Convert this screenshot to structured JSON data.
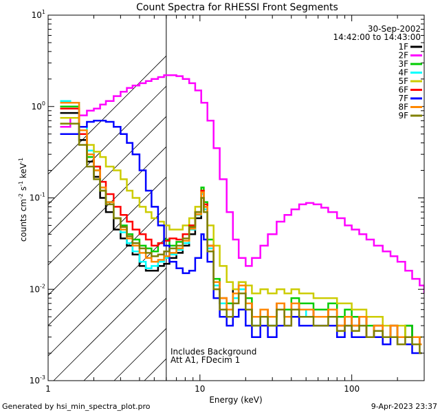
{
  "chart_data": {
    "type": "line",
    "title": "Count Spectra for RHESSI Front Segments",
    "date": "30-Sep-2002",
    "time_range": "14:42:00 to 14:43:00",
    "xlabel": "Energy (keV)",
    "ylabel_main": "counts cm",
    "ylabel_exp1": "-2",
    "ylabel_mid": " s",
    "ylabel_exp2": "-1",
    "ylabel_unit": " keV",
    "ylabel_exp3": "-1",
    "x_scale": "log",
    "y_scale": "log",
    "xlim": [
      1,
      300
    ],
    "ylim": [
      0.001,
      10
    ],
    "x_ticks": [
      {
        "value": 1,
        "label": "1"
      },
      {
        "value": 10,
        "label": "10"
      },
      {
        "value": 100,
        "label": "100"
      }
    ],
    "y_ticks": [
      {
        "value": 0.001,
        "base": "10",
        "exp": "-3"
      },
      {
        "value": 0.01,
        "base": "10",
        "exp": "-2"
      },
      {
        "value": 0.1,
        "base": "10",
        "exp": "-1"
      },
      {
        "value": 1,
        "base": "10",
        "exp": "0"
      },
      {
        "value": 10,
        "base": "10",
        "exp": "1"
      }
    ],
    "vline_energy": 6,
    "hatch_region": [
      1,
      6
    ],
    "annotations": [
      "Includes Background",
      "Att A1, FDecim 1"
    ],
    "footer_left": "Generated by hsi_min_spectra_plot.pro",
    "footer_right": "9-Apr-2023 23:37",
    "series": [
      {
        "name": "1F",
        "color": "#000000",
        "x": [
          1.2,
          1.4,
          1.6,
          1.8,
          2.0,
          2.2,
          2.4,
          2.7,
          3.0,
          3.3,
          3.6,
          4.0,
          4.4,
          4.8,
          5.3,
          5.8,
          6.3,
          7.0,
          7.7,
          8.5,
          9.3,
          10.2,
          10.6,
          11.2,
          12.3,
          13.5,
          15.0,
          16.5,
          18.0,
          20,
          22,
          25,
          28,
          32,
          36,
          40,
          45,
          50,
          56,
          63,
          70,
          80,
          90,
          100,
          112,
          125,
          140,
          160,
          180,
          200,
          225,
          250,
          280
        ],
        "y": [
          0.85,
          0.85,
          0.43,
          0.25,
          0.17,
          0.1,
          0.07,
          0.045,
          0.036,
          0.03,
          0.024,
          0.018,
          0.016,
          0.016,
          0.018,
          0.019,
          0.022,
          0.025,
          0.03,
          0.04,
          0.06,
          0.12,
          0.08,
          0.03,
          0.012,
          0.007,
          0.006,
          0.01,
          0.012,
          0.007,
          0.004,
          0.005,
          0.004,
          0.006,
          0.005,
          0.007,
          0.006,
          0.006,
          0.005,
          0.005,
          0.006,
          0.004,
          0.005,
          0.004,
          0.005,
          0.003,
          0.004,
          0.003,
          0.004,
          0.003,
          0.004,
          0.003,
          0.0025
        ]
      },
      {
        "name": "2F",
        "color": "#ff00ff",
        "x": [
          1.2,
          1.4,
          1.6,
          1.8,
          2.0,
          2.2,
          2.4,
          2.7,
          3.0,
          3.3,
          3.6,
          4.0,
          4.4,
          4.8,
          5.3,
          5.8,
          6.3,
          7.0,
          7.7,
          8.5,
          9.3,
          10.2,
          11.2,
          12.3,
          13.5,
          15.0,
          16.5,
          18.0,
          20,
          22,
          25,
          28,
          32,
          36,
          40,
          45,
          50,
          56,
          63,
          70,
          80,
          90,
          100,
          112,
          125,
          140,
          160,
          180,
          200,
          225,
          250,
          280,
          300
        ],
        "y": [
          0.6,
          0.75,
          0.8,
          0.9,
          0.95,
          1.05,
          1.15,
          1.3,
          1.45,
          1.6,
          1.7,
          1.8,
          1.9,
          2.0,
          2.1,
          2.2,
          2.2,
          2.15,
          2.0,
          1.8,
          1.5,
          1.1,
          0.7,
          0.35,
          0.16,
          0.07,
          0.035,
          0.022,
          0.018,
          0.022,
          0.03,
          0.04,
          0.055,
          0.065,
          0.075,
          0.085,
          0.088,
          0.085,
          0.078,
          0.07,
          0.06,
          0.05,
          0.045,
          0.04,
          0.035,
          0.03,
          0.026,
          0.023,
          0.02,
          0.016,
          0.013,
          0.011,
          0.009
        ]
      },
      {
        "name": "3F",
        "color": "#00cc00",
        "x": [
          1.2,
          1.4,
          1.6,
          1.8,
          2.0,
          2.2,
          2.4,
          2.7,
          3.0,
          3.3,
          3.6,
          4.0,
          4.4,
          4.8,
          5.3,
          5.8,
          6.3,
          7.0,
          7.7,
          8.5,
          9.3,
          10.2,
          10.6,
          11.2,
          12.3,
          13.5,
          15.0,
          16.5,
          18.0,
          20,
          22,
          25,
          28,
          32,
          36,
          40,
          45,
          50,
          56,
          63,
          70,
          80,
          90,
          100,
          112,
          125,
          140,
          160,
          180,
          200,
          225,
          250,
          280
        ],
        "y": [
          1.0,
          1.0,
          0.5,
          0.28,
          0.2,
          0.12,
          0.09,
          0.06,
          0.05,
          0.04,
          0.035,
          0.03,
          0.028,
          0.026,
          0.032,
          0.035,
          0.03,
          0.033,
          0.04,
          0.05,
          0.07,
          0.13,
          0.09,
          0.035,
          0.013,
          0.008,
          0.007,
          0.009,
          0.012,
          0.008,
          0.005,
          0.006,
          0.005,
          0.007,
          0.006,
          0.008,
          0.007,
          0.007,
          0.006,
          0.006,
          0.007,
          0.005,
          0.006,
          0.005,
          0.005,
          0.004,
          0.004,
          0.003,
          0.004,
          0.003,
          0.004,
          0.003,
          0.003
        ]
      },
      {
        "name": "4F",
        "color": "#00ffff",
        "x": [
          1.2,
          1.4,
          1.6,
          1.8,
          2.0,
          2.2,
          2.4,
          2.7,
          3.0,
          3.3,
          3.6,
          4.0,
          4.4,
          4.8,
          5.3,
          5.8,
          6.3,
          7.0,
          7.7,
          8.5,
          9.3,
          10.2,
          10.6,
          11.2,
          12.3,
          13.5,
          15.0,
          16.5,
          18.0,
          20,
          22,
          25,
          28,
          32,
          36,
          40,
          45,
          50,
          56,
          63,
          70,
          80,
          90,
          100,
          112,
          125,
          140,
          160,
          180,
          200,
          225,
          250,
          280
        ],
        "y": [
          1.15,
          1.1,
          0.6,
          0.33,
          0.22,
          0.13,
          0.09,
          0.06,
          0.042,
          0.032,
          0.026,
          0.02,
          0.017,
          0.018,
          0.02,
          0.022,
          0.024,
          0.027,
          0.032,
          0.045,
          0.065,
          0.11,
          0.075,
          0.028,
          0.011,
          0.007,
          0.005,
          0.008,
          0.01,
          0.006,
          0.004,
          0.005,
          0.004,
          0.006,
          0.005,
          0.006,
          0.006,
          0.005,
          0.005,
          0.005,
          0.005,
          0.004,
          0.005,
          0.004,
          0.004,
          0.003,
          0.004,
          0.003,
          0.003,
          0.003,
          0.003,
          0.0025,
          0.0025
        ]
      },
      {
        "name": "5F",
        "color": "#cccc00",
        "x": [
          1.2,
          1.4,
          1.6,
          1.8,
          2.0,
          2.2,
          2.4,
          2.7,
          3.0,
          3.3,
          3.6,
          4.0,
          4.4,
          4.8,
          5.3,
          5.8,
          6.3,
          7.0,
          7.7,
          8.5,
          9.3,
          10.2,
          10.6,
          11.2,
          12.3,
          13.5,
          15.0,
          16.5,
          18.0,
          20,
          22,
          25,
          28,
          32,
          36,
          40,
          45,
          50,
          56,
          63,
          70,
          80,
          90,
          100,
          112,
          125,
          140,
          160,
          180,
          200,
          225,
          250,
          280
        ],
        "y": [
          0.75,
          0.75,
          0.5,
          0.38,
          0.32,
          0.28,
          0.22,
          0.2,
          0.16,
          0.12,
          0.1,
          0.08,
          0.07,
          0.06,
          0.055,
          0.05,
          0.045,
          0.045,
          0.05,
          0.06,
          0.08,
          0.12,
          0.08,
          0.05,
          0.03,
          0.018,
          0.012,
          0.01,
          0.012,
          0.011,
          0.009,
          0.01,
          0.009,
          0.01,
          0.009,
          0.01,
          0.009,
          0.009,
          0.008,
          0.008,
          0.008,
          0.007,
          0.007,
          0.006,
          0.006,
          0.005,
          0.005,
          0.004,
          0.004,
          0.004,
          0.003,
          0.003,
          0.003
        ]
      },
      {
        "name": "6F",
        "color": "#ff0000",
        "x": [
          1.2,
          1.4,
          1.6,
          1.8,
          2.0,
          2.2,
          2.4,
          2.7,
          3.0,
          3.3,
          3.6,
          4.0,
          4.4,
          4.8,
          5.3,
          5.8,
          6.3,
          7.0,
          7.7,
          8.5,
          9.3,
          10.2,
          10.6,
          11.2,
          12.3,
          13.5,
          15.0,
          16.5,
          18.0,
          20,
          22,
          25,
          28,
          32,
          36,
          40,
          45,
          50,
          56,
          63,
          70,
          80,
          90,
          100,
          112,
          125,
          140,
          160,
          180,
          200,
          225,
          250,
          280
        ],
        "y": [
          0.95,
          0.95,
          0.5,
          0.3,
          0.22,
          0.15,
          0.11,
          0.08,
          0.065,
          0.055,
          0.045,
          0.04,
          0.035,
          0.03,
          0.032,
          0.034,
          0.036,
          0.035,
          0.04,
          0.05,
          0.07,
          0.12,
          0.085,
          0.03,
          0.012,
          0.008,
          0.006,
          0.009,
          0.011,
          0.007,
          0.005,
          0.006,
          0.005,
          0.007,
          0.005,
          0.007,
          0.006,
          0.006,
          0.005,
          0.005,
          0.006,
          0.004,
          0.005,
          0.004,
          0.005,
          0.003,
          0.004,
          0.003,
          0.004,
          0.003,
          0.003,
          0.003,
          0.0025
        ]
      },
      {
        "name": "7F",
        "color": "#0000ff",
        "x": [
          1.2,
          1.4,
          1.6,
          1.8,
          2.0,
          2.2,
          2.4,
          2.7,
          3.0,
          3.3,
          3.6,
          4.0,
          4.4,
          4.8,
          5.3,
          5.8,
          6.3,
          7.0,
          7.7,
          8.5,
          9.3,
          10.2,
          10.6,
          11.2,
          12.3,
          13.5,
          15.0,
          16.5,
          18.0,
          20,
          22,
          25,
          28,
          32,
          36,
          40,
          45,
          50,
          56,
          63,
          70,
          80,
          90,
          100,
          112,
          125,
          140,
          160,
          180,
          200,
          225,
          250,
          280
        ],
        "y": [
          0.5,
          0.5,
          0.6,
          0.68,
          0.7,
          0.7,
          0.68,
          0.6,
          0.5,
          0.4,
          0.3,
          0.2,
          0.12,
          0.08,
          0.05,
          0.03,
          0.02,
          0.017,
          0.015,
          0.016,
          0.022,
          0.04,
          0.035,
          0.02,
          0.008,
          0.005,
          0.004,
          0.005,
          0.006,
          0.004,
          0.003,
          0.004,
          0.003,
          0.004,
          0.004,
          0.005,
          0.004,
          0.004,
          0.004,
          0.004,
          0.004,
          0.003,
          0.004,
          0.003,
          0.003,
          0.003,
          0.003,
          0.0025,
          0.003,
          0.0025,
          0.0025,
          0.002,
          0.002
        ]
      },
      {
        "name": "8F",
        "color": "#ff8800",
        "x": [
          1.2,
          1.4,
          1.6,
          1.8,
          2.0,
          2.2,
          2.4,
          2.7,
          3.0,
          3.3,
          3.6,
          4.0,
          4.4,
          4.8,
          5.3,
          5.8,
          6.3,
          7.0,
          7.7,
          8.5,
          9.3,
          10.2,
          10.6,
          11.2,
          12.3,
          13.5,
          15.0,
          16.5,
          18.0,
          20,
          22,
          25,
          28,
          32,
          36,
          40,
          45,
          50,
          56,
          63,
          70,
          80,
          90,
          100,
          112,
          125,
          140,
          160,
          180,
          200,
          225,
          250,
          280
        ],
        "y": [
          1.1,
          1.1,
          0.55,
          0.3,
          0.2,
          0.13,
          0.09,
          0.06,
          0.045,
          0.036,
          0.03,
          0.025,
          0.022,
          0.02,
          0.021,
          0.023,
          0.025,
          0.028,
          0.034,
          0.046,
          0.066,
          0.115,
          0.08,
          0.03,
          0.012,
          0.008,
          0.006,
          0.009,
          0.011,
          0.007,
          0.005,
          0.006,
          0.005,
          0.007,
          0.005,
          0.007,
          0.006,
          0.006,
          0.005,
          0.005,
          0.006,
          0.004,
          0.005,
          0.004,
          0.005,
          0.003,
          0.004,
          0.003,
          0.004,
          0.003,
          0.003,
          0.003,
          0.0025
        ]
      },
      {
        "name": "9F",
        "color": "#808000",
        "x": [
          1.2,
          1.4,
          1.6,
          1.8,
          2.0,
          2.2,
          2.4,
          2.7,
          3.0,
          3.3,
          3.6,
          4.0,
          4.4,
          4.8,
          5.3,
          5.8,
          6.3,
          7.0,
          7.7,
          8.5,
          9.3,
          10.2,
          10.6,
          11.2,
          12.3,
          13.5,
          15.0,
          16.5,
          18.0,
          20,
          22,
          25,
          28,
          32,
          36,
          40,
          45,
          50,
          56,
          63,
          70,
          80,
          90,
          100,
          112,
          125,
          140,
          160,
          180,
          200,
          225,
          250,
          280
        ],
        "y": [
          0.65,
          0.65,
          0.38,
          0.22,
          0.16,
          0.12,
          0.085,
          0.06,
          0.048,
          0.038,
          0.032,
          0.028,
          0.025,
          0.023,
          0.024,
          0.026,
          0.028,
          0.03,
          0.036,
          0.048,
          0.07,
          0.1,
          0.07,
          0.026,
          0.01,
          0.006,
          0.005,
          0.007,
          0.009,
          0.006,
          0.004,
          0.005,
          0.004,
          0.006,
          0.004,
          0.006,
          0.005,
          0.005,
          0.004,
          0.004,
          0.005,
          0.0035,
          0.004,
          0.0035,
          0.004,
          0.003,
          0.0035,
          0.003,
          0.003,
          0.0025,
          0.003,
          0.0025,
          0.002
        ]
      }
    ]
  }
}
